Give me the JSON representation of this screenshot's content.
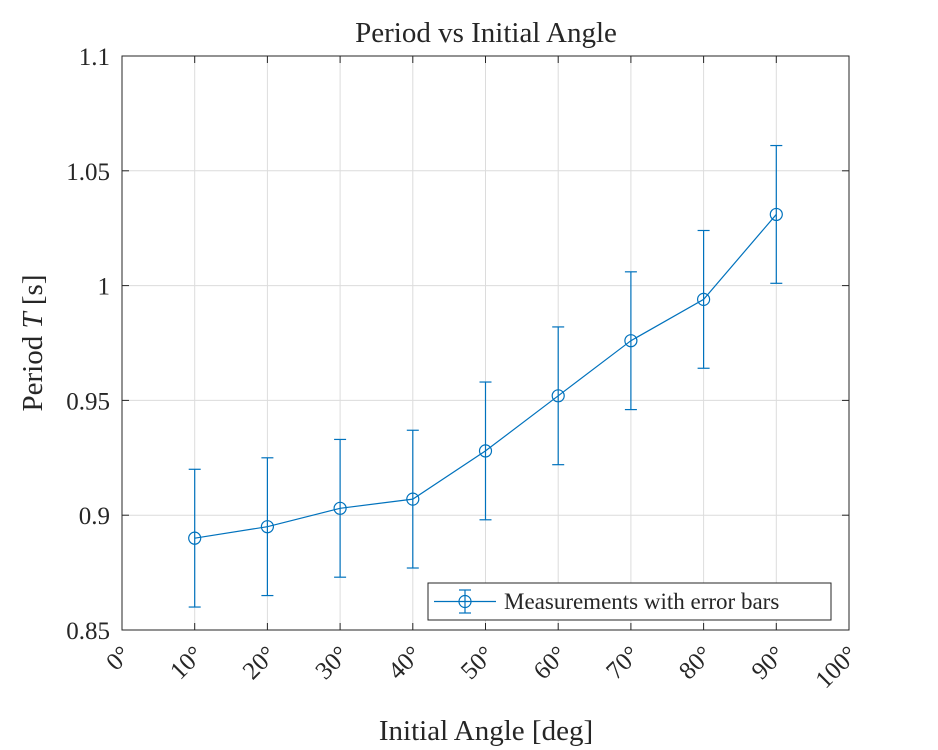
{
  "chart_data": {
    "type": "line",
    "title": "Period vs Initial Angle",
    "xlabel": "Initial Angle [deg]",
    "ylabel_prefix": "Period ",
    "ylabel_symbol": "T",
    "ylabel_suffix": " [s]",
    "xlim": [
      0,
      100
    ],
    "ylim": [
      0.85,
      1.1
    ],
    "x_ticks": [
      0,
      10,
      20,
      30,
      40,
      50,
      60,
      70,
      80,
      90,
      100
    ],
    "x_tick_labels": [
      "0°",
      "10°",
      "20°",
      "30°",
      "40°",
      "50°",
      "60°",
      "70°",
      "80°",
      "90°",
      "100°"
    ],
    "y_ticks": [
      0.85,
      0.9,
      0.95,
      1.0,
      1.05,
      1.1
    ],
    "y_tick_labels": [
      "0.85",
      "0.9",
      "0.95",
      "1",
      "1.05",
      "1.1"
    ],
    "grid": true,
    "legend_position": "bottom-right",
    "series": [
      {
        "name": "Measurements with error bars",
        "color": "#0072BD",
        "marker": "circle",
        "x": [
          10,
          20,
          30,
          40,
          50,
          60,
          70,
          80,
          90
        ],
        "y": [
          0.89,
          0.895,
          0.903,
          0.907,
          0.928,
          0.952,
          0.976,
          0.994,
          1.031
        ],
        "error": [
          0.03,
          0.03,
          0.03,
          0.03,
          0.03,
          0.03,
          0.03,
          0.03,
          0.03
        ]
      }
    ]
  }
}
